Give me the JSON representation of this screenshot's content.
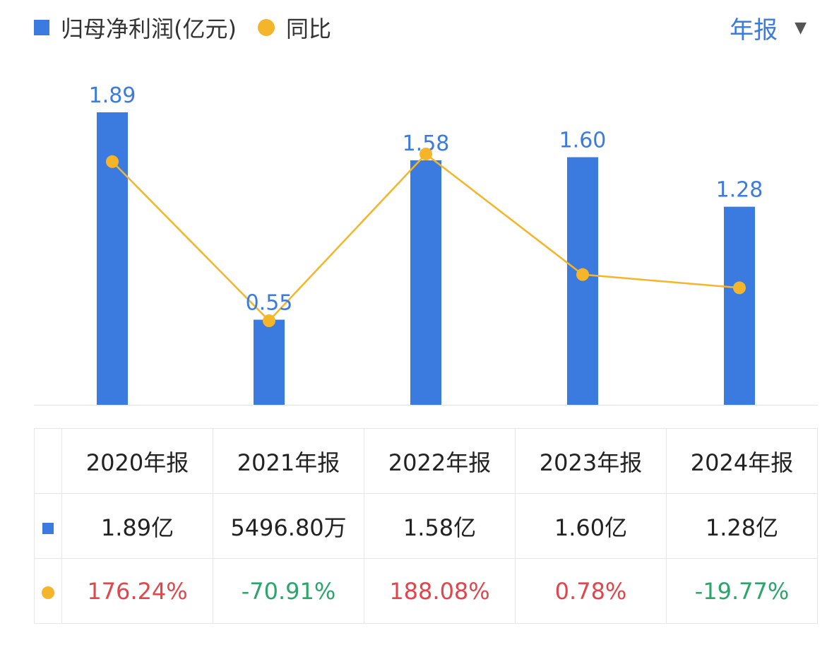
{
  "legend": {
    "bar_label": "归母净利润(亿元)",
    "line_label": "同比",
    "bar_color": "#3B7BE0",
    "line_color": "#F5B52A"
  },
  "period_selector": {
    "label": "年报",
    "color": "#3B7BE0"
  },
  "chart_data": {
    "type": "bar",
    "categories": [
      "2020年报",
      "2021年报",
      "2022年报",
      "2023年报",
      "2024年报"
    ],
    "series": [
      {
        "name": "归母净利润(亿元)",
        "type": "bar",
        "values": [
          1.89,
          0.55,
          1.58,
          1.6,
          1.28
        ],
        "data_labels": [
          "1.89",
          "0.55",
          "1.58",
          "1.60",
          "1.28"
        ]
      },
      {
        "name": "同比",
        "type": "line",
        "values": [
          176.24,
          -70.91,
          188.08,
          0.78,
          -19.77
        ]
      }
    ],
    "ylim_bar": [
      0,
      1.89
    ],
    "ylim_line": [
      -70.91,
      188.08
    ],
    "legend_position": "top-left",
    "grid": false
  },
  "table": {
    "headers": [
      "2020年报",
      "2021年报",
      "2022年报",
      "2023年报",
      "2024年报"
    ],
    "profit_row": [
      "1.89亿",
      "5496.80万",
      "1.58亿",
      "1.60亿",
      "1.28亿"
    ],
    "yoy_row": [
      "176.24%",
      "-70.91%",
      "188.08%",
      "0.78%",
      "-19.77%"
    ],
    "positive_color": "#E0474C",
    "negative_color": "#2BA56B"
  }
}
